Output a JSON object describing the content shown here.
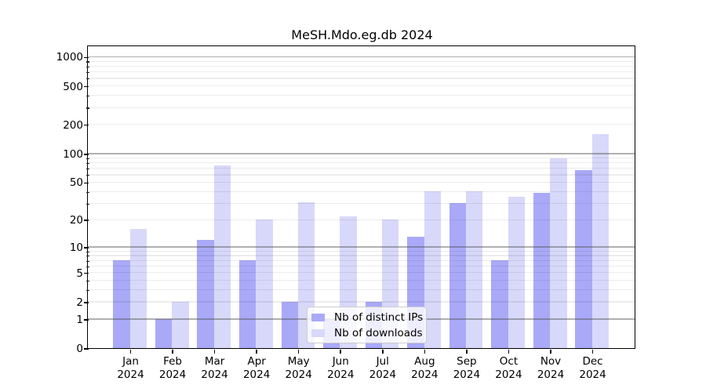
{
  "chart_data": {
    "type": "bar",
    "title": "MeSH.Mdo.eg.db 2024",
    "xlabel": "",
    "ylabel": "",
    "categories": [
      "Jan",
      "Feb",
      "Mar",
      "Apr",
      "May",
      "Jun",
      "Jul",
      "Aug",
      "Sep",
      "Oct",
      "Nov",
      "Dec"
    ],
    "x_year_label": "2024",
    "series": [
      {
        "name": "Nb of distinct IPs",
        "color": "#a9a9f8",
        "values": [
          7,
          1,
          12,
          7,
          2,
          1,
          2,
          13,
          30,
          7,
          39,
          67
        ]
      },
      {
        "name": "Nb of downloads",
        "color": "#d8d8fa",
        "values": [
          16,
          2,
          76,
          20,
          31,
          22,
          20,
          40,
          40,
          35,
          90,
          160
        ]
      }
    ],
    "yscale": "log1p",
    "yticks": [
      0,
      1,
      2,
      5,
      10,
      20,
      50,
      100,
      200,
      500,
      1000
    ],
    "ylim": [
      0,
      1280
    ],
    "grid": "on",
    "grid_major_at": [
      1,
      10,
      100,
      1000
    ],
    "legend_position": "bottom-center"
  }
}
